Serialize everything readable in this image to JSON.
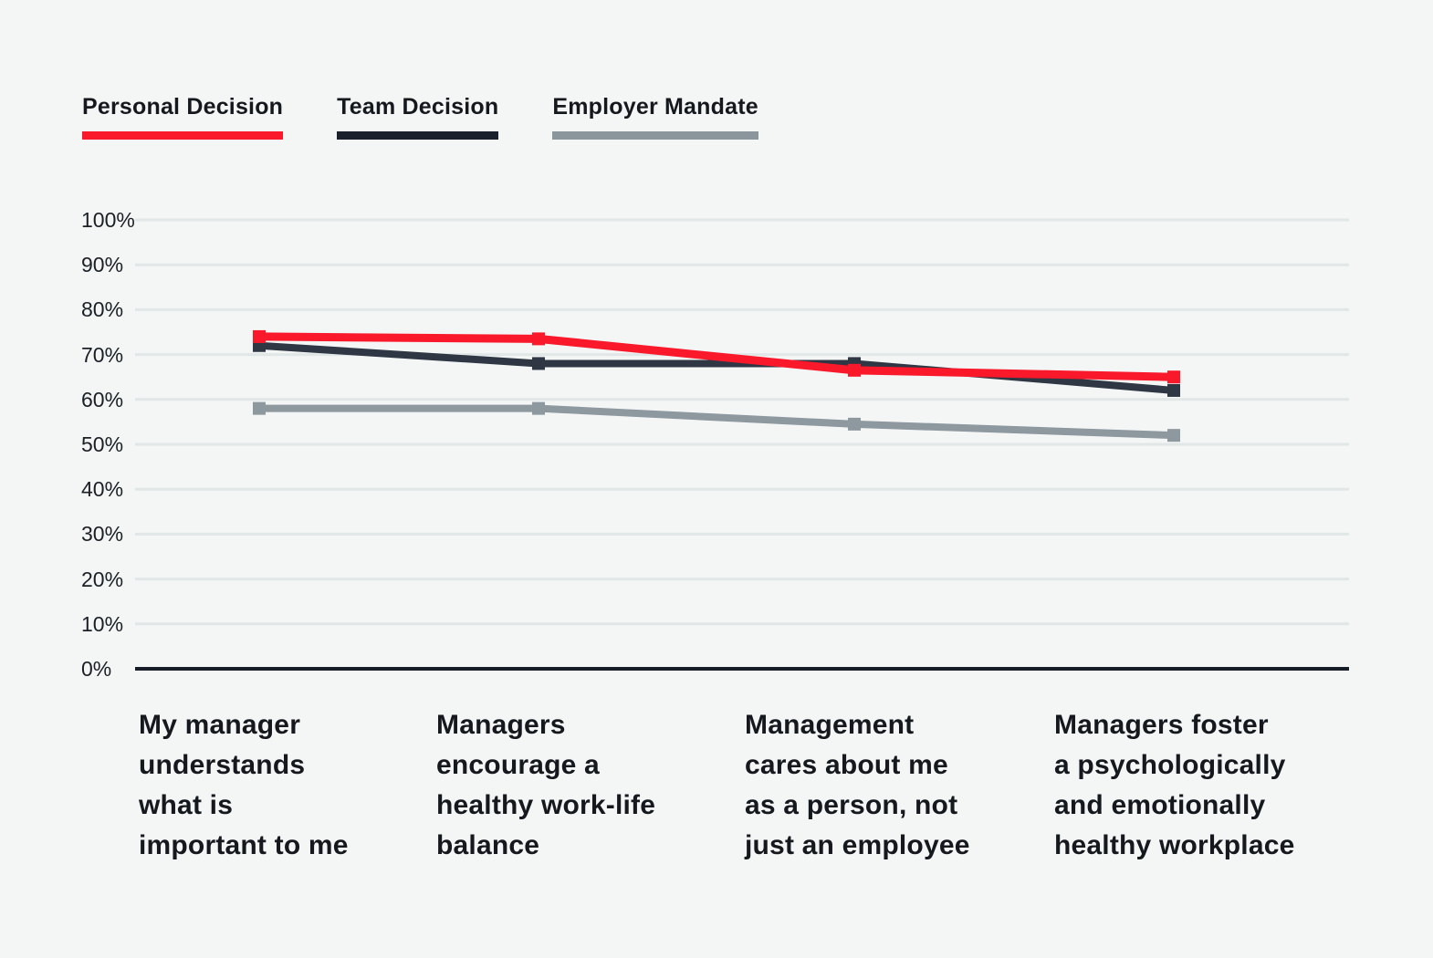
{
  "page": {
    "background_color": "#F4F6F6",
    "gridline_color": "#E1E6E6",
    "axis_line_color": "#161D26",
    "text_color": "#15191E"
  },
  "chart_data": {
    "type": "line",
    "marker": "square",
    "grid": "horizontal",
    "legend_position": "top-left",
    "ylim": [
      0,
      100
    ],
    "ytick_labels": [
      "100%",
      "90%",
      "80%",
      "70%",
      "60%",
      "50%",
      "40%",
      "30%",
      "20%",
      "10%",
      "0%"
    ],
    "ytick_values": [
      100,
      90,
      80,
      70,
      60,
      50,
      40,
      30,
      20,
      10,
      0
    ],
    "categories": [
      "My manager\nunderstands\nwhat is\nimportant to me",
      "Managers\nencourage a\nhealthy work-life\nbalance",
      "Management\ncares about me\nas a person, not\njust an employee",
      "Managers foster\na psychologically\nand emotionally\nhealthy workplace"
    ],
    "series": [
      {
        "name": "Personal Decision",
        "color": "#F9192B",
        "legend_bar_color": "#F9192B",
        "values": [
          74,
          73.5,
          66.5,
          65
        ]
      },
      {
        "name": "Team Decision",
        "color": "#2E3743",
        "legend_bar_color": "#1B212C",
        "values": [
          72,
          68,
          68,
          62
        ]
      },
      {
        "name": "Employer Mandate",
        "color": "#8D989F",
        "legend_bar_color": "#8A959C",
        "values": [
          58,
          58,
          54.5,
          52
        ]
      }
    ]
  }
}
